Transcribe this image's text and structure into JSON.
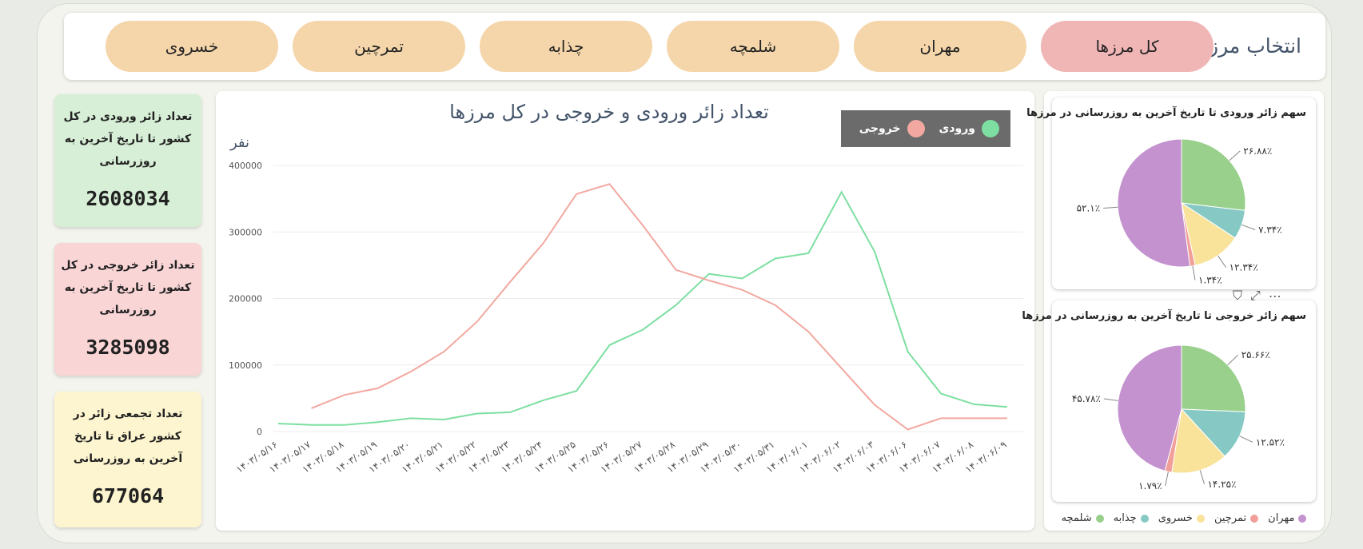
{
  "filter": {
    "title": "انتخاب مرز:",
    "options": [
      "کل مرزها",
      "مهران",
      "شلمچه",
      "چذابه",
      "تمرچین",
      "خسروی"
    ],
    "active_index": 0
  },
  "kpis": [
    {
      "title": "تعداد زائر ورودی در کل کشور تا تاریخ آخرین به روزرسانی",
      "value": "2608034",
      "color": "#d6efd6"
    },
    {
      "title": "تعداد زائر خروجی در کل کشور تا تاریخ آخرین به روزرسانی",
      "value": "3285098",
      "color": "#f9d5d6"
    },
    {
      "title": "تعداد تجمعی زائر در کشور عراق تا تاریخ آخرین به روزرسانی",
      "value": "677064",
      "color": "#fdf5cf"
    }
  ],
  "line_chart": {
    "title": "تعداد زائر ورودی و خروجی در کل مرزها",
    "unit": "نفر",
    "legend": {
      "entry": "ورودی",
      "exit": "خروجی"
    },
    "colors": {
      "entry": "#7ddfa1",
      "exit": "#f2a8a0"
    }
  },
  "pies": [
    {
      "title": "سهم زائر ورودی تا تاریخ آخرین به روزرسانی در مرزها"
    },
    {
      "title": "سهم زائر خروجی تا تاریخ آخرین به روزرسانی در مرزها"
    }
  ],
  "pie_legend": [
    {
      "name": "مهران",
      "color": "#c392cf"
    },
    {
      "name": "تمرچین",
      "color": "#f29f9a"
    },
    {
      "name": "خسروی",
      "color": "#f9e39a"
    },
    {
      "name": "چذابه",
      "color": "#86c9c4"
    },
    {
      "name": "شلمچه",
      "color": "#98d08c"
    }
  ],
  "chart_data": [
    {
      "type": "line",
      "title": "تعداد زائر ورودی و خروجی در کل مرزها",
      "ylabel": "نفر",
      "ylim": [
        0,
        400000
      ],
      "yticks": [
        0,
        100000,
        200000,
        300000,
        400000
      ],
      "yticklabels": [
        "0",
        "100000",
        "200000",
        "300000",
        "400000"
      ],
      "grid": true,
      "legend_position": "top-right",
      "x": [
        "۱۴۰۳/۰۵/۱۶",
        "۱۴۰۳/۰۵/۱۷",
        "۱۴۰۳/۰۵/۱۸",
        "۱۴۰۳/۰۵/۱۹",
        "۱۴۰۳/۰۵/۲۰",
        "۱۴۰۳/۰۵/۲۱",
        "۱۴۰۳/۰۵/۲۲",
        "۱۴۰۳/۰۵/۲۳",
        "۱۴۰۳/۰۵/۲۴",
        "۱۴۰۳/۰۵/۲۵",
        "۱۴۰۳/۰۵/۲۶",
        "۱۴۰۳/۰۵/۲۷",
        "۱۴۰۳/۰۵/۲۸",
        "۱۴۰۳/۰۵/۲۹",
        "۱۴۰۳/۰۵/۳۰",
        "۱۴۰۳/۰۵/۳۱",
        "۱۴۰۳/۰۶/۰۱",
        "۱۴۰۳/۰۶/۰۲",
        "۱۴۰۳/۰۶/۰۳",
        "۱۴۰۳/۰۶/۰۶",
        "۱۴۰۳/۰۶/۰۷",
        "۱۴۰۳/۰۶/۰۸",
        "۱۴۰۳/۰۶/۰۹"
      ],
      "series": [
        {
          "name": "ورودی",
          "color": "#7ddfa1",
          "values": [
            12000,
            10000,
            10000,
            14000,
            20000,
            18000,
            27000,
            29000,
            47000,
            61000,
            130000,
            153000,
            190000,
            237000,
            230000,
            260000,
            268000,
            360000,
            270000,
            120000,
            57000,
            41000,
            37000
          ]
        },
        {
          "name": "خروجی",
          "color": "#f2a8a0",
          "values": [
            null,
            35000,
            55000,
            65000,
            90000,
            120000,
            165000,
            225000,
            283000,
            357000,
            372000,
            310000,
            243000,
            227000,
            213000,
            190000,
            150000,
            95000,
            40000,
            3000,
            20000,
            20000,
            20000
          ]
        }
      ]
    },
    {
      "type": "pie",
      "title": "سهم زائر ورودی تا تاریخ آخرین به روزرسانی در مرزها",
      "slices": [
        {
          "name": "شلمچه",
          "value": 26.88,
          "label": "۲۶.۸۸٪",
          "color": "#98d08c"
        },
        {
          "name": "چذابه",
          "value": 7.34,
          "label": "۷.۳۴٪",
          "color": "#86c9c4"
        },
        {
          "name": "خسروی",
          "value": 12.34,
          "label": "۱۲.۳۴٪",
          "color": "#f9e39a"
        },
        {
          "name": "تمرچین",
          "value": 1.34,
          "label": "۱.۳۴٪",
          "color": "#f29f9a"
        },
        {
          "name": "مهران",
          "value": 52.1,
          "label": "۵۲.۱٪",
          "color": "#c392cf"
        }
      ]
    },
    {
      "type": "pie",
      "title": "سهم زائر خروجی تا تاریخ آخرین به روزرسانی در مرزها",
      "slices": [
        {
          "name": "شلمچه",
          "value": 25.66,
          "label": "۲۵.۶۶٪",
          "color": "#98d08c"
        },
        {
          "name": "چذابه",
          "value": 12.52,
          "label": "۱۲.۵۲٪",
          "color": "#86c9c4"
        },
        {
          "name": "خسروی",
          "value": 14.25,
          "label": "۱۴.۲۵٪",
          "color": "#f9e39a"
        },
        {
          "name": "تمرچین",
          "value": 1.79,
          "label": "۱.۷۹٪",
          "color": "#f29f9a"
        },
        {
          "name": "مهران",
          "value": 45.78,
          "label": "۴۵.۷۸٪",
          "color": "#c392cf"
        }
      ]
    }
  ]
}
